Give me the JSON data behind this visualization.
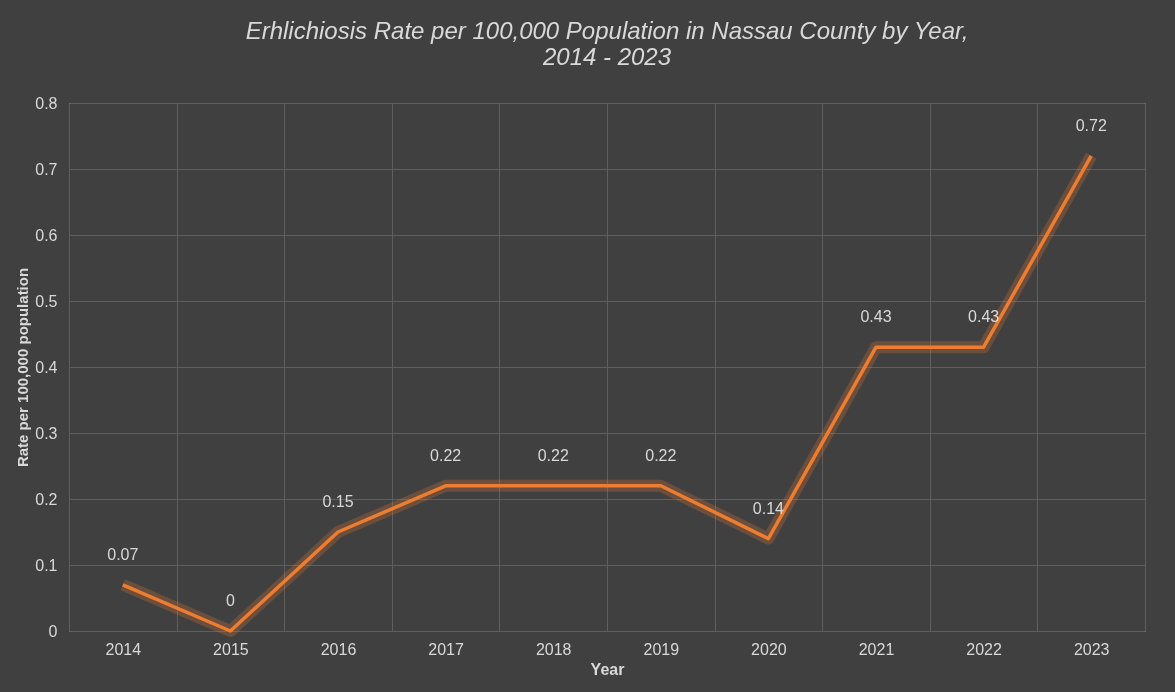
{
  "chart_data": {
    "type": "line",
    "title": "Erhlichiosis Rate per 100,000 Population in Nassau County by Year, 2014 - 2023",
    "xlabel": "Year",
    "ylabel": "Rate per 100,000 population",
    "categories": [
      "2014",
      "2015",
      "2016",
      "2017",
      "2018",
      "2019",
      "2020",
      "2021",
      "2022",
      "2023"
    ],
    "series": [
      {
        "color": "#ed7d31",
        "values": [
          0.07,
          0,
          0.15,
          0.22,
          0.22,
          0.22,
          0.14,
          0.43,
          0.43,
          0.72
        ]
      }
    ],
    "ylim": [
      0,
      0.8
    ],
    "yticks": [
      0,
      0.1,
      0.2,
      0.3,
      0.4,
      0.5,
      0.6,
      0.7,
      0.8
    ],
    "grid": true,
    "data_labels": true,
    "marker": "none",
    "line_style": "solid"
  }
}
